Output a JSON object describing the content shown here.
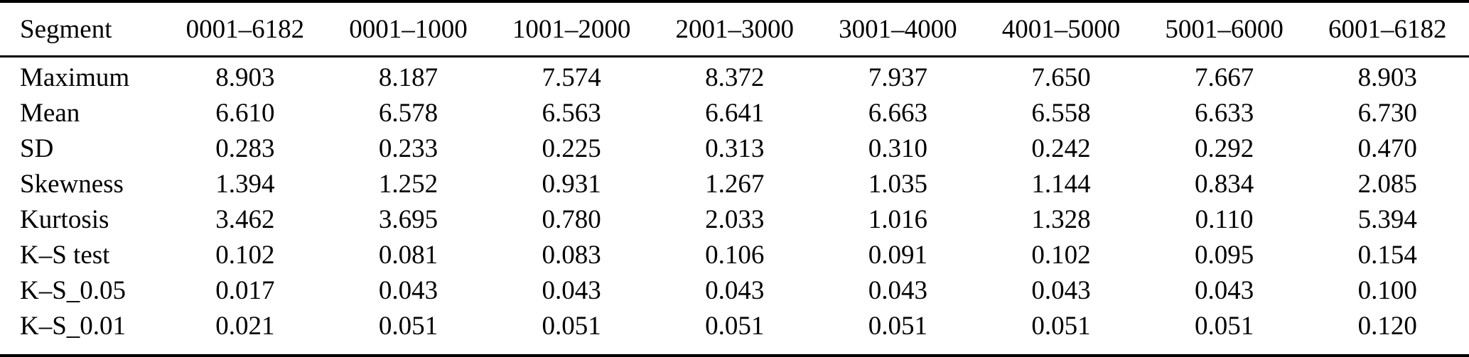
{
  "colors": {
    "text": "#000000",
    "background": "#ffffff",
    "rule": "#000000"
  },
  "table": {
    "columns": [
      "Segment",
      "0001–6182",
      "0001–1000",
      "1001–2000",
      "2001–3000",
      "3001–4000",
      "4001–5000",
      "5001–6000",
      "6001–6182"
    ],
    "rows": [
      {
        "label": "Maximum",
        "values": [
          "8.903",
          "8.187",
          "7.574",
          "8.372",
          "7.937",
          "7.650",
          "7.667",
          "8.903"
        ]
      },
      {
        "label": "Mean",
        "values": [
          "6.610",
          "6.578",
          "6.563",
          "6.641",
          "6.663",
          "6.558",
          "6.633",
          "6.730"
        ]
      },
      {
        "label": "SD",
        "values": [
          "0.283",
          "0.233",
          "0.225",
          "0.313",
          "0.310",
          "0.242",
          "0.292",
          "0.470"
        ]
      },
      {
        "label": "Skewness",
        "values": [
          "1.394",
          "1.252",
          "0.931",
          "1.267",
          "1.035",
          "1.144",
          "0.834",
          "2.085"
        ]
      },
      {
        "label": "Kurtosis",
        "values": [
          "3.462",
          "3.695",
          "0.780",
          "2.033",
          "1.016",
          "1.328",
          "0.110",
          "5.394"
        ]
      },
      {
        "label": "K–S test",
        "values": [
          "0.102",
          "0.081",
          "0.083",
          "0.106",
          "0.091",
          "0.102",
          "0.095",
          "0.154"
        ]
      },
      {
        "label": "K–S_0.05",
        "values": [
          "0.017",
          "0.043",
          "0.043",
          "0.043",
          "0.043",
          "0.043",
          "0.043",
          "0.100"
        ]
      },
      {
        "label": "K–S_0.01",
        "values": [
          "0.021",
          "0.051",
          "0.051",
          "0.051",
          "0.051",
          "0.051",
          "0.051",
          "0.120"
        ]
      }
    ]
  }
}
